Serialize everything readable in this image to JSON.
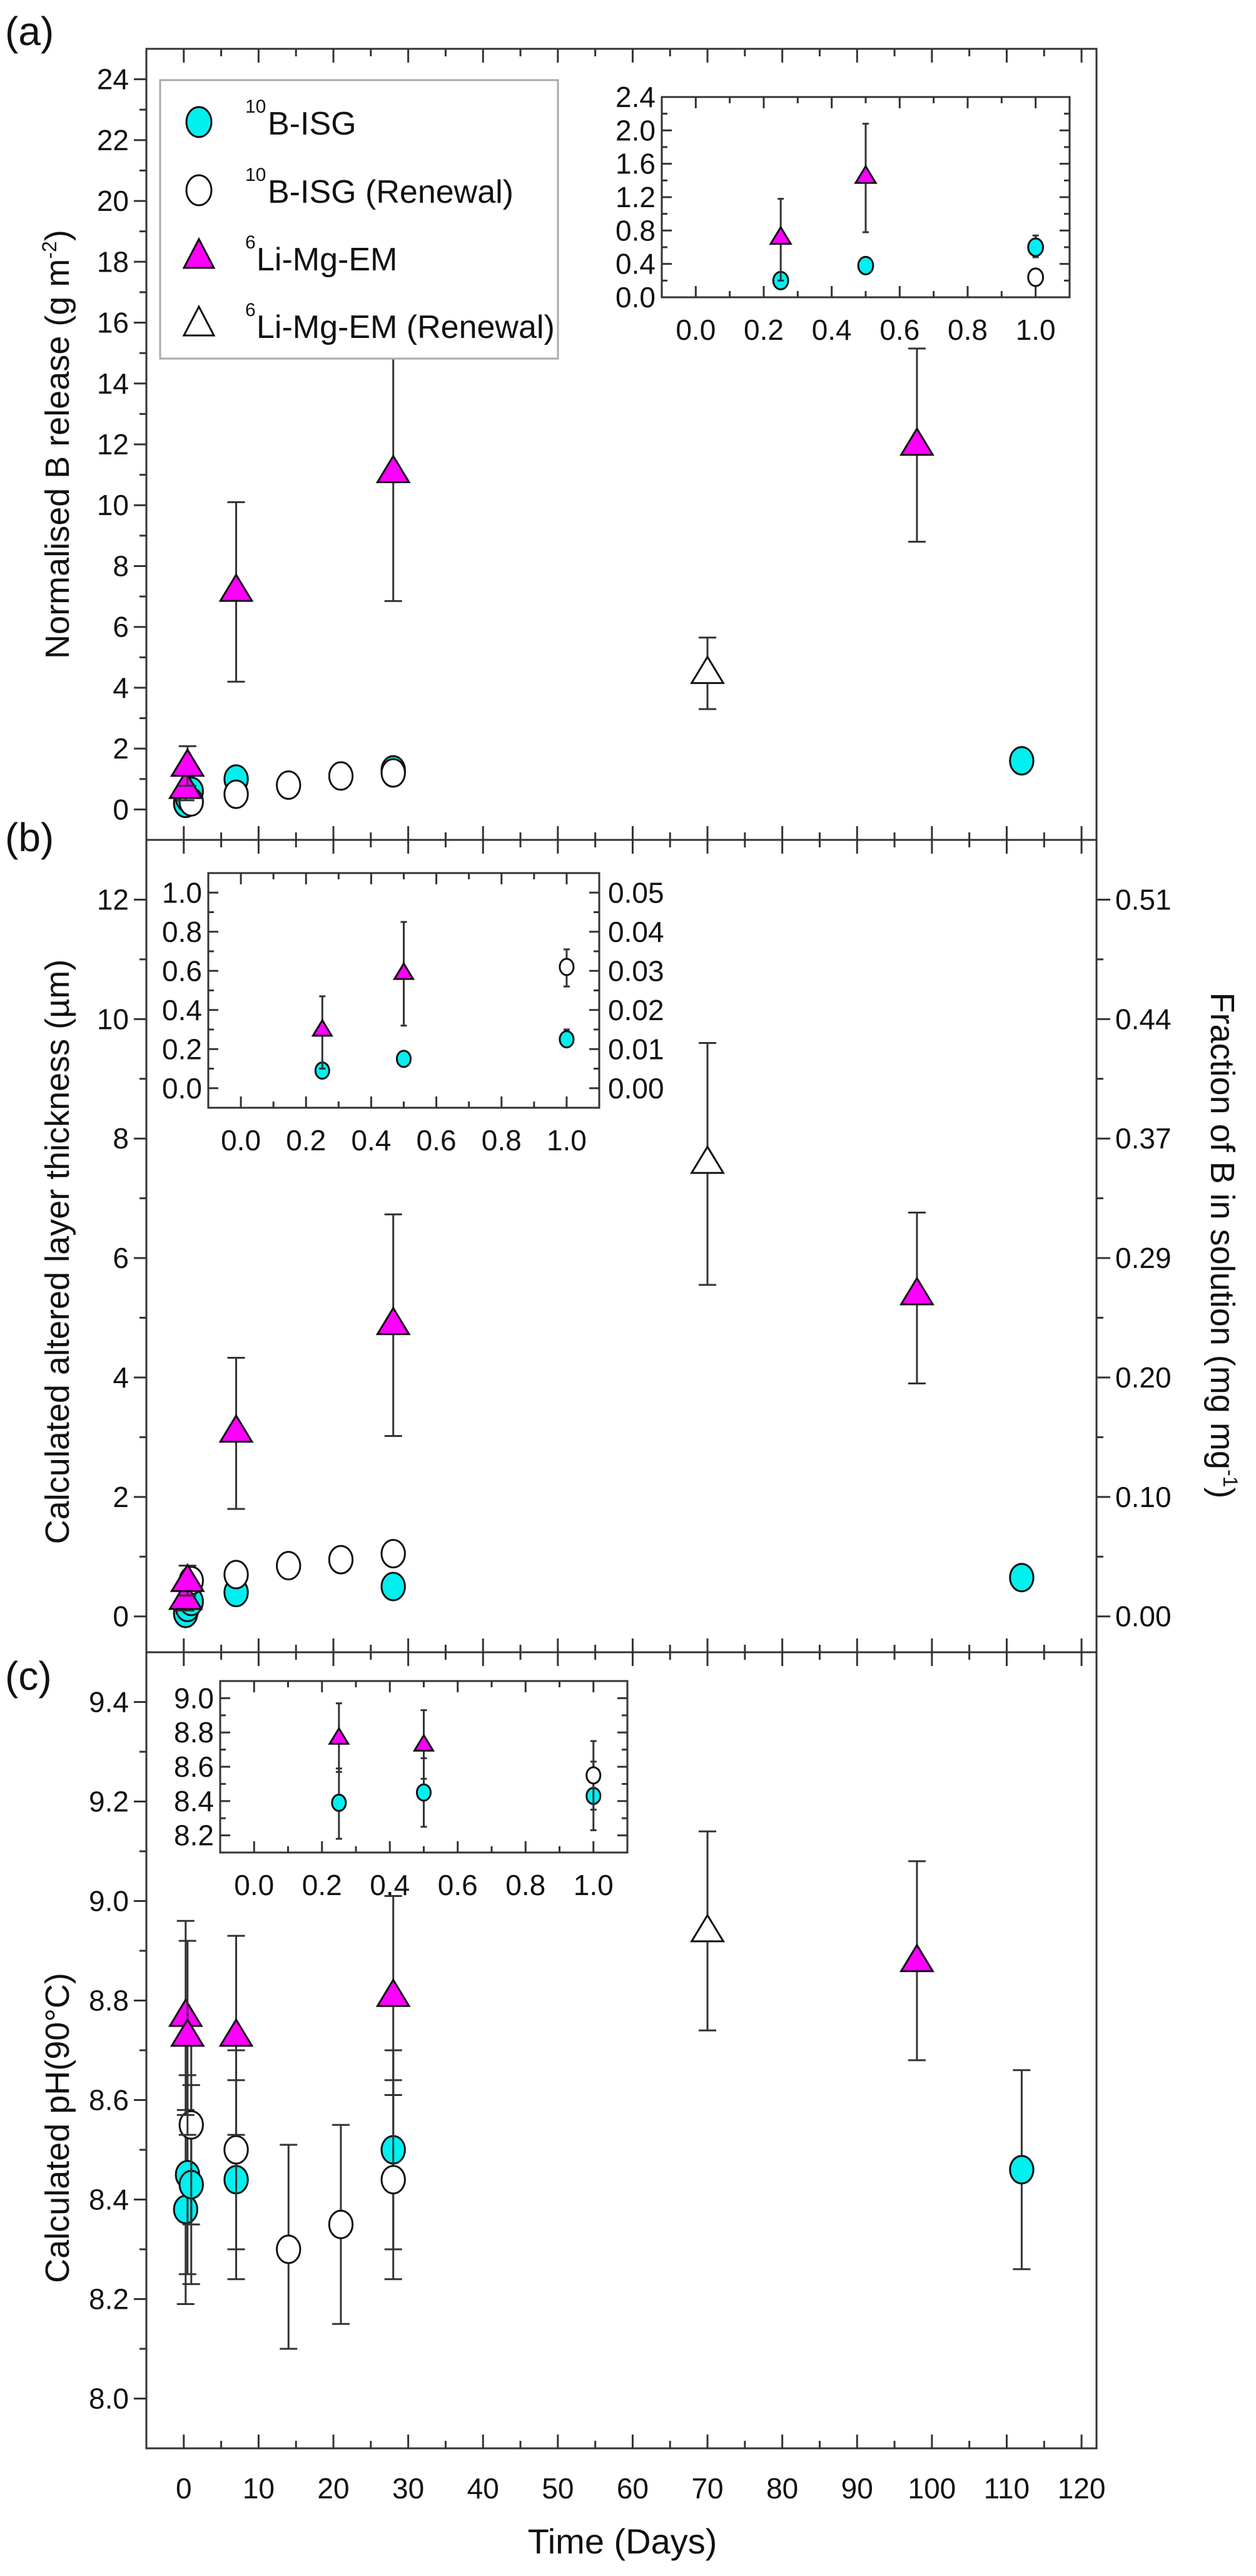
{
  "figure": {
    "panel_labels": [
      "(a)",
      "(b)",
      "(c)"
    ],
    "x_label": "Time (Days)",
    "x_ticks": [
      "0",
      "10",
      "20",
      "30",
      "40",
      "50",
      "60",
      "70",
      "80",
      "90",
      "100",
      "110",
      "120"
    ],
    "legend": [
      {
        "sup": "10",
        "label": "B-ISG",
        "marker": "circle",
        "filled": true
      },
      {
        "sup": "10",
        "label": "B-ISG (Renewal)",
        "marker": "circle",
        "filled": false
      },
      {
        "sup": "6",
        "label": "Li-Mg-EM",
        "marker": "triangle",
        "filled": true
      },
      {
        "sup": "6",
        "label": "Li-Mg-EM (Renewal)",
        "marker": "triangle",
        "filled": false
      }
    ],
    "colors": {
      "isg": "#00f0f0",
      "limgem": "#ff00ff",
      "open": "#ffffff",
      "edge": "#111111"
    }
  },
  "chart_data": [
    {
      "type": "scatter",
      "panel": "(a)",
      "title": "",
      "xlabel": "Time (Days)",
      "ylabel": "Normalised B release (g m-2)",
      "ylabel_main": "Normalised B release (g m",
      "ylabel_sup": "-2",
      "ylabel_tail": ")",
      "xlim": [
        -5,
        122
      ],
      "ylim": [
        -1,
        25
      ],
      "yticks": [
        0,
        2,
        4,
        6,
        8,
        10,
        12,
        14,
        16,
        18,
        20,
        22,
        24
      ],
      "series": [
        {
          "name": "10B-ISG",
          "marker": "circle",
          "filled": true,
          "points": [
            {
              "x": 0.25,
              "y": 0.2,
              "lo": 0.15,
              "hi": 0.25
            },
            {
              "x": 0.5,
              "y": 0.38,
              "lo": 0.32,
              "hi": 0.42
            },
            {
              "x": 1,
              "y": 0.6,
              "lo": 0.5,
              "hi": 0.7
            },
            {
              "x": 7,
              "y": 1.0,
              "lo": 0.8,
              "hi": 1.2
            },
            {
              "x": 28,
              "y": 1.3,
              "lo": 1.05,
              "hi": 1.55
            },
            {
              "x": 112,
              "y": 1.6,
              "lo": 1.4,
              "hi": 1.8
            }
          ]
        },
        {
          "name": "10B-ISG (Renewal)",
          "marker": "circle",
          "filled": false,
          "points": [
            {
              "x": 1,
              "y": 0.25,
              "lo": 0.18,
              "hi": 0.3
            },
            {
              "x": 7,
              "y": 0.5,
              "lo": 0.3,
              "hi": 0.7
            },
            {
              "x": 14,
              "y": 0.8,
              "lo": 0.6,
              "hi": 1.0
            },
            {
              "x": 21,
              "y": 1.1,
              "lo": 0.9,
              "hi": 1.3
            },
            {
              "x": 28,
              "y": 1.2,
              "lo": 1.0,
              "hi": 1.4
            }
          ]
        },
        {
          "name": "6Li-Mg-EM",
          "marker": "triangle",
          "filled": true,
          "points": [
            {
              "x": 0.25,
              "y": 0.72,
              "lo": 0.3,
              "hi": 1.18
            },
            {
              "x": 0.5,
              "y": 1.45,
              "lo": 0.78,
              "hi": 2.08
            },
            {
              "x": 7,
              "y": 7.2,
              "lo": 4.2,
              "hi": 10.1
            },
            {
              "x": 28,
              "y": 11.1,
              "lo": 6.85,
              "hi": 15.2
            },
            {
              "x": 98,
              "y": 12.0,
              "lo": 8.8,
              "hi": 15.15
            }
          ]
        },
        {
          "name": "6Li-Mg-EM (Renewal)",
          "marker": "triangle",
          "filled": false,
          "points": [
            {
              "x": 70,
              "y": 4.5,
              "lo": 3.3,
              "hi": 5.65
            }
          ]
        }
      ],
      "inset": {
        "xlim": [
          -0.1,
          1.1
        ],
        "ylim": [
          0.0,
          2.4
        ],
        "xticks": [
          "0.0",
          "0.2",
          "0.4",
          "0.6",
          "0.8",
          "1.0"
        ],
        "yticks": [
          "0.0",
          "0.4",
          "0.8",
          "1.2",
          "1.6",
          "2.0",
          "2.4"
        ],
        "series": [
          {
            "name": "10B-ISG",
            "marker": "circle",
            "filled": true,
            "points": [
              {
                "x": 0.25,
                "y": 0.2,
                "lo": 0.14,
                "hi": 0.26
              },
              {
                "x": 0.5,
                "y": 0.38,
                "lo": 0.3,
                "hi": 0.45
              },
              {
                "x": 1.0,
                "y": 0.6,
                "lo": 0.48,
                "hi": 0.74
              }
            ]
          },
          {
            "name": "10B-ISG (Renewal)",
            "marker": "circle",
            "filled": false,
            "points": [
              {
                "x": 1.0,
                "y": 0.24,
                "lo": 0.15,
                "hi": 0.32
              }
            ]
          },
          {
            "name": "6Li-Mg-EM",
            "marker": "triangle",
            "filled": true,
            "points": [
              {
                "x": 0.25,
                "y": 0.72,
                "lo": 0.2,
                "hi": 1.18
              },
              {
                "x": 0.5,
                "y": 1.45,
                "lo": 0.78,
                "hi": 2.08
              }
            ]
          }
        ]
      }
    },
    {
      "type": "scatter",
      "panel": "(b)",
      "title": "",
      "xlabel": "Time (Days)",
      "ylabel": "Calculated altered layer thickness (µm)",
      "y2label": "Fraction of B in solution (mg mg-1)",
      "y2label_main": "Fraction of B in solution (mg mg",
      "y2label_sup": "-1",
      "y2label_tail": ")",
      "xlim": [
        -5,
        122
      ],
      "ylim": [
        -0.6,
        13
      ],
      "yticks": [
        0,
        2,
        4,
        6,
        8,
        10,
        12
      ],
      "y2ticks": [
        {
          "at": 0,
          "label": "0.00"
        },
        {
          "at": 2,
          "label": "0.10"
        },
        {
          "at": 4,
          "label": "0.20"
        },
        {
          "at": 6,
          "label": "0.29"
        },
        {
          "at": 8,
          "label": "0.37"
        },
        {
          "at": 10,
          "label": "0.44"
        },
        {
          "at": 12,
          "label": "0.51"
        }
      ],
      "series": [
        {
          "name": "10B-ISG",
          "marker": "circle",
          "filled": true,
          "points": [
            {
              "x": 0.25,
              "y": 0.05,
              "lo": 0.0,
              "hi": 0.1
            },
            {
              "x": 0.5,
              "y": 0.15,
              "lo": 0.1,
              "hi": 0.2
            },
            {
              "x": 1,
              "y": 0.25,
              "lo": 0.2,
              "hi": 0.3
            },
            {
              "x": 7,
              "y": 0.4,
              "lo": 0.3,
              "hi": 0.5
            },
            {
              "x": 28,
              "y": 0.5,
              "lo": 0.4,
              "hi": 0.6
            },
            {
              "x": 112,
              "y": 0.65,
              "lo": 0.55,
              "hi": 0.75
            }
          ]
        },
        {
          "name": "10B-ISG (Renewal)",
          "marker": "circle",
          "filled": false,
          "points": [
            {
              "x": 1,
              "y": 0.6,
              "lo": 0.5,
              "hi": 0.7
            },
            {
              "x": 7,
              "y": 0.7,
              "lo": 0.6,
              "hi": 0.8
            },
            {
              "x": 14,
              "y": 0.85,
              "lo": 0.75,
              "hi": 0.95
            },
            {
              "x": 21,
              "y": 0.95,
              "lo": 0.85,
              "hi": 1.05
            },
            {
              "x": 28,
              "y": 1.05,
              "lo": 0.95,
              "hi": 1.15
            }
          ]
        },
        {
          "name": "6Li-Mg-EM",
          "marker": "triangle",
          "filled": true,
          "points": [
            {
              "x": 0.25,
              "y": 0.3,
              "lo": 0.1,
              "hi": 0.5
            },
            {
              "x": 0.5,
              "y": 0.6,
              "lo": 0.35,
              "hi": 0.85
            },
            {
              "x": 7,
              "y": 3.1,
              "lo": 1.8,
              "hi": 4.33
            },
            {
              "x": 28,
              "y": 4.9,
              "lo": 3.02,
              "hi": 6.73
            },
            {
              "x": 98,
              "y": 5.4,
              "lo": 3.9,
              "hi": 6.76
            }
          ]
        },
        {
          "name": "6Li-Mg-EM (Renewal)",
          "marker": "triangle",
          "filled": false,
          "points": [
            {
              "x": 70,
              "y": 7.6,
              "lo": 5.55,
              "hi": 9.6
            }
          ]
        }
      ],
      "inset": {
        "xlim": [
          -0.1,
          1.1
        ],
        "ylim": [
          -0.1,
          1.1
        ],
        "xticks": [
          "0.0",
          "0.2",
          "0.4",
          "0.6",
          "0.8",
          "1.0"
        ],
        "yticks": [
          "0.0",
          "0.2",
          "0.4",
          "0.6",
          "0.8",
          "1.0"
        ],
        "y2ticks": [
          "0.00",
          "0.01",
          "0.02",
          "0.03",
          "0.04",
          "0.05"
        ],
        "series": [
          {
            "name": "10B-ISG",
            "marker": "circle",
            "filled": true,
            "points": [
              {
                "x": 0.25,
                "y": 0.09,
                "lo": 0.06,
                "hi": 0.12
              },
              {
                "x": 0.5,
                "y": 0.15,
                "lo": 0.12,
                "hi": 0.18
              },
              {
                "x": 1.0,
                "y": 0.25,
                "lo": 0.22,
                "hi": 0.3
              }
            ]
          },
          {
            "name": "10B-ISG (Renewal)",
            "marker": "circle",
            "filled": false,
            "points": [
              {
                "x": 1.0,
                "y": 0.62,
                "lo": 0.52,
                "hi": 0.71
              }
            ]
          },
          {
            "name": "6Li-Mg-EM",
            "marker": "triangle",
            "filled": true,
            "points": [
              {
                "x": 0.25,
                "y": 0.3,
                "lo": 0.1,
                "hi": 0.47
              },
              {
                "x": 0.5,
                "y": 0.59,
                "lo": 0.32,
                "hi": 0.85
              }
            ]
          }
        ]
      }
    },
    {
      "type": "scatter",
      "panel": "(c)",
      "title": "",
      "xlabel": "Time (Days)",
      "ylabel": "Calculated pH(90°C)",
      "xlim": [
        -5,
        122
      ],
      "ylim": [
        7.9,
        9.5
      ],
      "yticks": [
        "8.0",
        "8.2",
        "8.4",
        "8.6",
        "8.8",
        "9.0",
        "9.2",
        "9.4"
      ],
      "series": [
        {
          "name": "10B-ISG",
          "marker": "circle",
          "filled": true,
          "points": [
            {
              "x": 0.25,
              "y": 8.38,
              "lo": 8.19,
              "hi": 8.58
            },
            {
              "x": 0.5,
              "y": 8.45,
              "lo": 8.25,
              "hi": 8.65
            },
            {
              "x": 1,
              "y": 8.43,
              "lo": 8.23,
              "hi": 8.63
            },
            {
              "x": 7,
              "y": 8.44,
              "lo": 8.24,
              "hi": 8.64
            },
            {
              "x": 28,
              "y": 8.5,
              "lo": 8.3,
              "hi": 8.7
            },
            {
              "x": 112,
              "y": 8.46,
              "lo": 8.26,
              "hi": 8.66
            }
          ]
        },
        {
          "name": "10B-ISG (Renewal)",
          "marker": "circle",
          "filled": false,
          "points": [
            {
              "x": 1,
              "y": 8.55,
              "lo": 8.35,
              "hi": 8.75
            },
            {
              "x": 7,
              "y": 8.5,
              "lo": 8.3,
              "hi": 8.7
            },
            {
              "x": 14,
              "y": 8.3,
              "lo": 8.1,
              "hi": 8.51
            },
            {
              "x": 21,
              "y": 8.35,
              "lo": 8.15,
              "hi": 8.55
            },
            {
              "x": 28,
              "y": 8.44,
              "lo": 8.24,
              "hi": 8.64
            }
          ]
        },
        {
          "name": "6Li-Mg-EM",
          "marker": "triangle",
          "filled": true,
          "points": [
            {
              "x": 0.25,
              "y": 8.77,
              "lo": 8.57,
              "hi": 8.96
            },
            {
              "x": 0.5,
              "y": 8.73,
              "lo": 8.53,
              "hi": 8.92
            },
            {
              "x": 7,
              "y": 8.73,
              "lo": 8.53,
              "hi": 8.93
            },
            {
              "x": 28,
              "y": 8.81,
              "lo": 8.61,
              "hi": 9.01
            },
            {
              "x": 98,
              "y": 8.88,
              "lo": 8.68,
              "hi": 9.08
            }
          ]
        },
        {
          "name": "6Li-Mg-EM (Renewal)",
          "marker": "triangle",
          "filled": false,
          "points": [
            {
              "x": 70,
              "y": 8.94,
              "lo": 8.74,
              "hi": 9.14
            }
          ]
        }
      ],
      "inset": {
        "xlim": [
          -0.1,
          1.1
        ],
        "ylim": [
          8.1,
          9.1
        ],
        "xticks": [
          "0.0",
          "0.2",
          "0.4",
          "0.6",
          "0.8",
          "1.0"
        ],
        "yticks": [
          "8.2",
          "8.4",
          "8.6",
          "8.8",
          "9.0"
        ],
        "series": [
          {
            "name": "10B-ISG",
            "marker": "circle",
            "filled": true,
            "points": [
              {
                "x": 0.25,
                "y": 8.39,
                "lo": 8.18,
                "hi": 8.59
              },
              {
                "x": 0.5,
                "y": 8.45,
                "lo": 8.25,
                "hi": 8.65
              },
              {
                "x": 1.0,
                "y": 8.43,
                "lo": 8.23,
                "hi": 8.63
              }
            ]
          },
          {
            "name": "10B-ISG (Renewal)",
            "marker": "circle",
            "filled": false,
            "points": [
              {
                "x": 1.0,
                "y": 8.55,
                "lo": 8.35,
                "hi": 8.75
              }
            ]
          },
          {
            "name": "6Li-Mg-EM",
            "marker": "triangle",
            "filled": true,
            "points": [
              {
                "x": 0.25,
                "y": 8.77,
                "lo": 8.57,
                "hi": 8.97
              },
              {
                "x": 0.5,
                "y": 8.73,
                "lo": 8.53,
                "hi": 8.93
              }
            ]
          }
        ]
      }
    }
  ]
}
